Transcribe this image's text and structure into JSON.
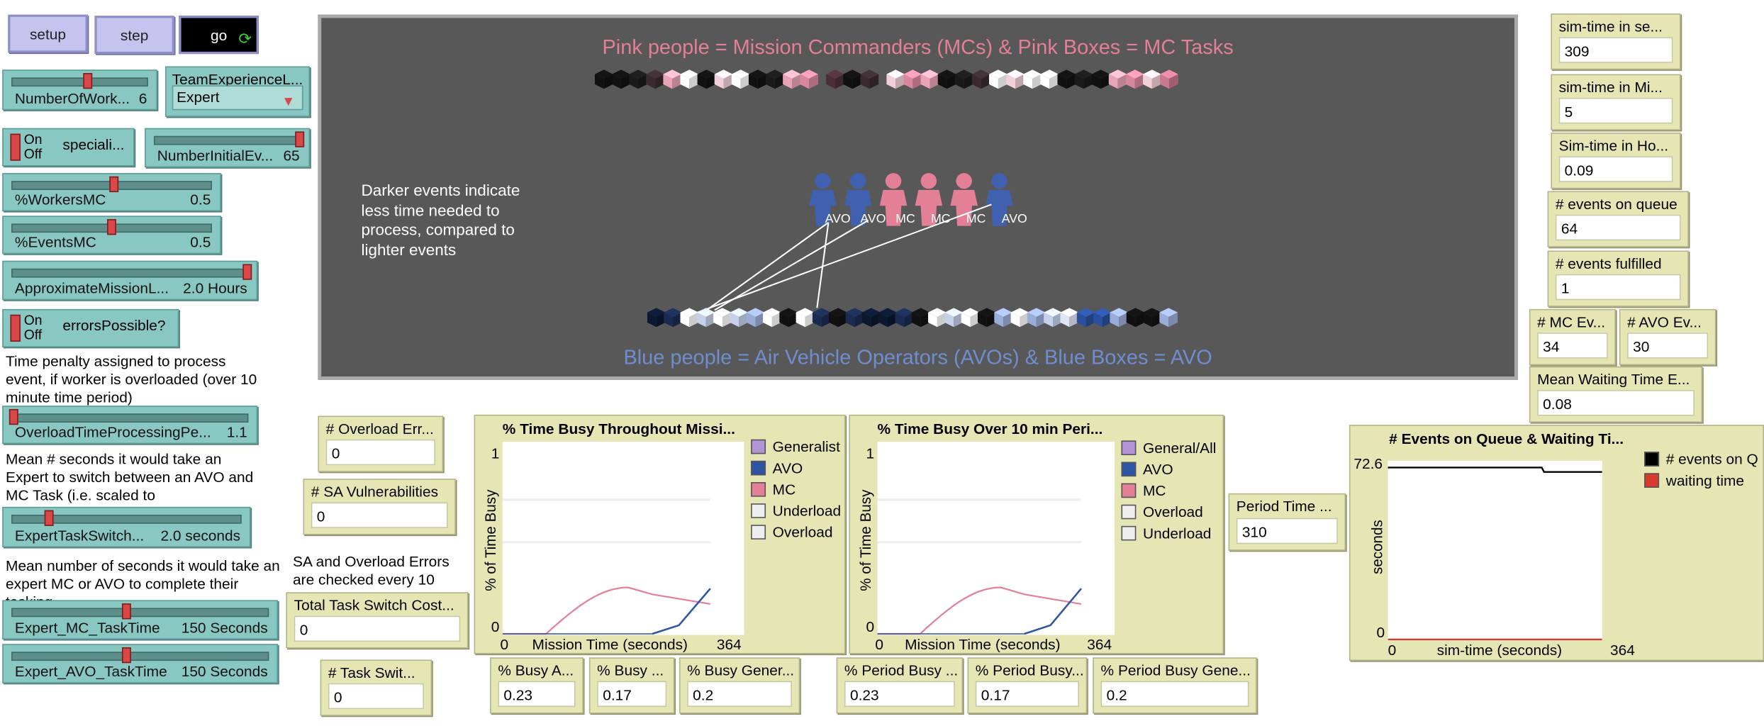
{
  "buttons": {
    "setup": "setup",
    "step": "step",
    "go": "go"
  },
  "sliders": {
    "number_of_workers": {
      "label": "NumberOfWork...",
      "value": "6",
      "fraction": 0.5
    },
    "number_initial_events": {
      "label": "NumberInitialEv...",
      "value": "65",
      "fraction": 1.0
    },
    "workers_mc": {
      "label": "%WorkersMC",
      "value": "0.5",
      "fraction": 0.5
    },
    "events_mc": {
      "label": "%EventsMC",
      "value": "0.5",
      "fraction": 0.5
    },
    "approx_mission": {
      "label": "ApproximateMissionL...",
      "value": "2.0 Hours",
      "fraction": 1.0
    },
    "overload_time": {
      "label": "OverloadTimeProcessingPe...",
      "value": "1.1",
      "fraction": 0.0
    },
    "expert_task_switch": {
      "label": "ExpertTaskSwitch...",
      "value": "2.0 seconds",
      "fraction": 0.15
    },
    "expert_mc_time": {
      "label": "Expert_MC_TaskTime",
      "value": "150 Seconds",
      "fraction": 0.45
    },
    "expert_avo_time": {
      "label": "Expert_AVO_TaskTime",
      "value": "150 Seconds",
      "fraction": 0.45
    }
  },
  "chooser": {
    "label": "TeamExperienceL...",
    "value": "Expert"
  },
  "switches": {
    "speciali": {
      "on": "On",
      "off": "Off",
      "label": "speciali..."
    },
    "errors": {
      "on": "On",
      "off": "Off",
      "label": "errorsPossible?"
    }
  },
  "notes": {
    "time_penalty": "Time penalty assigned to process event, if worker is overloaded (over 10 minute time period)",
    "mean_switch": "Mean # seconds it would take an Expert to switch between an AVO and MC Task (i.e. scaled to",
    "mean_complete": "Mean number of seconds it would take an expert MC or AVO to complete their tasking",
    "sa_checked": "SA and Overload Errors are checked every 10"
  },
  "world": {
    "top_title": "Pink people = Mission Commanders (MCs) &  Pink Boxes = MC Tasks",
    "bottom_title": "Blue people = Air Vehicle Operators (AVOs) &  Blue Boxes = AVO",
    "note": "Darker events indicate less time needed to process, compared to lighter events",
    "people": [
      "AVO",
      "AVO",
      "MC",
      "MC",
      "MC",
      "AVO"
    ],
    "colors": {
      "pink": "#e37f97",
      "blue": "#4060b0",
      "bg": "#585858"
    }
  },
  "monitors": {
    "sim_sec": {
      "label": "sim-time in se...",
      "value": "309"
    },
    "sim_min": {
      "label": "sim-time in Mi...",
      "value": "5"
    },
    "sim_hr": {
      "label": "Sim-time in Ho...",
      "value": "0.09"
    },
    "events_queue": {
      "label": "# events on queue",
      "value": "64"
    },
    "events_fulfilled": {
      "label": "# events fulfilled",
      "value": "1"
    },
    "mc_events": {
      "label": "# MC Ev...",
      "value": "34"
    },
    "avo_events": {
      "label": "# AVO Ev...",
      "value": "30"
    },
    "mean_wait": {
      "label": "Mean Waiting Time E...",
      "value": "0.08"
    },
    "overload_errors": {
      "label": "# Overload Err...",
      "value": "0"
    },
    "sa_vuln": {
      "label": "# SA Vulnerabilities",
      "value": "0"
    },
    "total_switch": {
      "label": "Total Task Switch Cost...",
      "value": "0"
    },
    "task_switch": {
      "label": "# Task Swit...",
      "value": "0"
    },
    "period_time": {
      "label": "Period Time ...",
      "value": "310"
    },
    "busy_a": {
      "label": "% Busy A...",
      "value": "0.23"
    },
    "busy_b": {
      "label": "% Busy ...",
      "value": "0.17"
    },
    "busy_gen": {
      "label": "% Busy Gener...",
      "value": "0.2"
    },
    "period_busy_a": {
      "label": "% Period Busy ...",
      "value": "0.23"
    },
    "period_busy_b": {
      "label": "% Period Busy...",
      "value": "0.17"
    },
    "period_busy_gen": {
      "label": "% Period Busy Gene...",
      "value": "0.2"
    }
  },
  "plots": {
    "mission": {
      "title": "% Time Busy Throughout Missi...",
      "ylabel": "% of Time Busy",
      "xlabel": "Mission Time (seconds)",
      "xmin": "0",
      "xmax": "364",
      "ymin": "0",
      "ymax": "1",
      "legend": [
        {
          "name": "Generalist",
          "color": "#b494d4"
        },
        {
          "name": "AVO",
          "color": "#2e55a5"
        },
        {
          "name": "MC",
          "color": "#e37f97"
        },
        {
          "name": "Underload",
          "color": "#eeeeee"
        },
        {
          "name": "Overload",
          "color": "#eeeeee"
        }
      ]
    },
    "period": {
      "title": "% Time Busy Over 10 min Peri...",
      "ylabel": "% of Time Busy",
      "xlabel": "Mission Time (seconds)",
      "xmin": "0",
      "xmax": "364",
      "ymin": "0",
      "ymax": "1",
      "legend": [
        {
          "name": "General/All",
          "color": "#b494d4"
        },
        {
          "name": "AVO",
          "color": "#2e55a5"
        },
        {
          "name": "MC",
          "color": "#e37f97"
        },
        {
          "name": "Overload",
          "color": "#eeeeee"
        },
        {
          "name": "Underload",
          "color": "#eeeeee"
        }
      ]
    },
    "queue": {
      "title": "# Events on Queue &  Waiting Ti...",
      "ylabel": "seconds",
      "xlabel": "sim-time (seconds)",
      "xmin": "0",
      "xmax": "364",
      "ymin": "0",
      "ymax": "72.6",
      "legend": [
        {
          "name": "# events on Q",
          "color": "#000000"
        },
        {
          "name": "waiting time",
          "color": "#d93a2e"
        }
      ]
    }
  }
}
